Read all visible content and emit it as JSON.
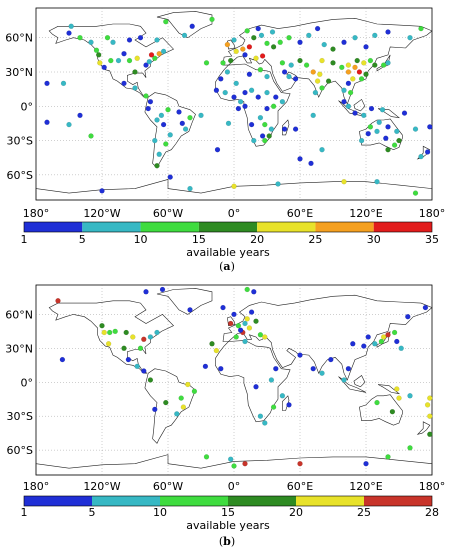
{
  "panels": [
    {
      "caption_prefix": "(",
      "caption_letter": "a",
      "caption_suffix": ")",
      "lat_labels": [
        "60°N",
        "30°N",
        "0°",
        "30°S",
        "60°S"
      ],
      "lat_values": [
        60,
        30,
        0,
        -30,
        -60
      ],
      "lon_labels": [
        "180°",
        "120°W",
        "60°W",
        "0°",
        "60°E",
        "120°E",
        "180°"
      ],
      "colorbar_ticks": [
        "1",
        "5",
        "10",
        "15",
        "20",
        "25",
        "30",
        "35"
      ],
      "colorbar_colors": [
        "#1f2fd6",
        "#37b8c4",
        "#3fdc3f",
        "#2e8b22",
        "#e8e22a",
        "#f5a020",
        "#e21c1c"
      ],
      "colorbar_title": "available years"
    },
    {
      "caption_prefix": "(",
      "caption_letter": "b",
      "caption_suffix": ")",
      "lat_labels": [
        "60°N",
        "30°N",
        "0°",
        "30°S",
        "60°S"
      ],
      "lat_values": [
        60,
        30,
        0,
        -30,
        -60
      ],
      "lon_labels": [
        "180°",
        "120°W",
        "60°W",
        "0°",
        "60°E",
        "120°E",
        "180°"
      ],
      "colorbar_ticks": [
        "1",
        "5",
        "10",
        "15",
        "20",
        "25",
        "28"
      ],
      "colorbar_colors": [
        "#1f2fd6",
        "#37b8c4",
        "#3fdc3f",
        "#2e8b22",
        "#e8e22a",
        "#c8342a"
      ],
      "colorbar_title": "available years"
    }
  ]
}
